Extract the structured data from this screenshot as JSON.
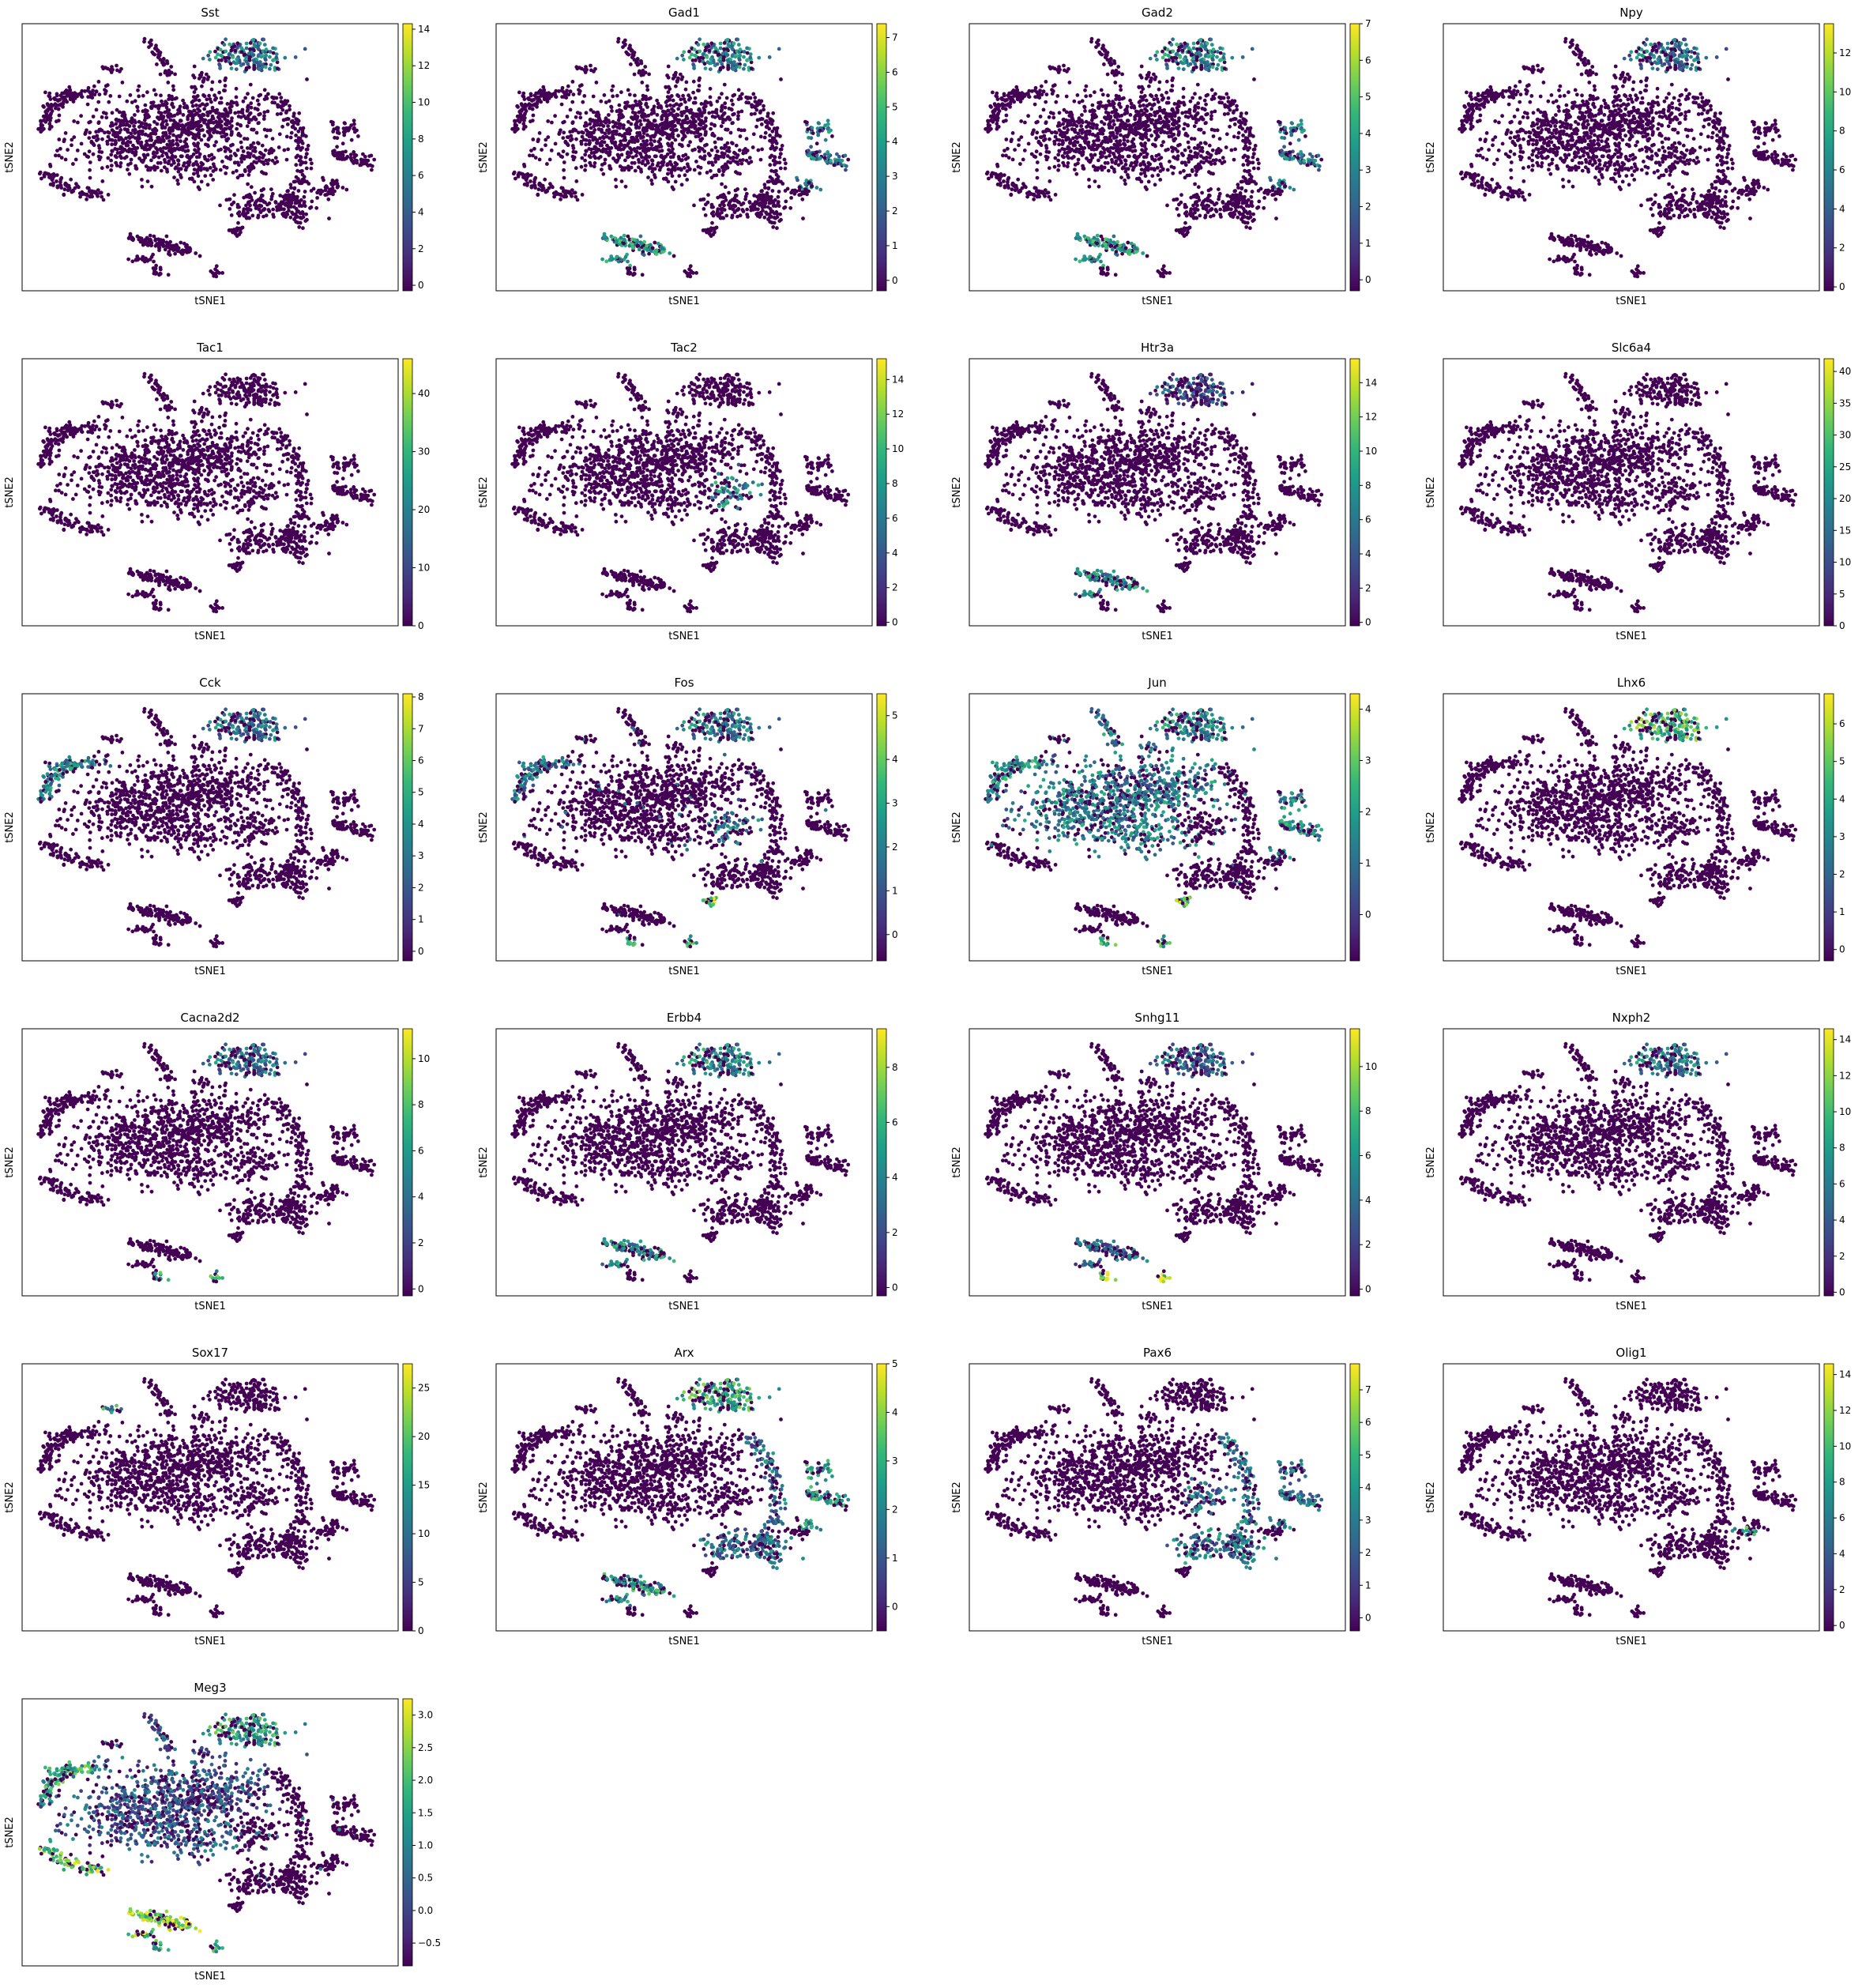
{
  "colormap": "viridis",
  "viridis_stops": [
    "#440154",
    "#482878",
    "#3e4989",
    "#31688e",
    "#26828e",
    "#1f9e89",
    "#35b779",
    "#6ece58",
    "#b5de2b",
    "#fde725"
  ],
  "point_color_base": "#440154",
  "chart_data": [
    {
      "type": "scatter",
      "title": "Sst",
      "xlabel": "tSNE1",
      "ylabel": "tSNE2",
      "clim": [
        -0.3,
        14.3
      ],
      "colorbar_ticks": [
        "0",
        "2",
        "4",
        "6",
        "8",
        "10",
        "12",
        "14"
      ],
      "colorbar_tick_values": [
        0,
        2,
        4,
        6,
        8,
        10,
        12,
        14
      ],
      "high_expression_regions": [
        {
          "region": "top-cluster",
          "level": 0.45
        }
      ]
    },
    {
      "type": "scatter",
      "title": "Gad1",
      "xlabel": "tSNE1",
      "ylabel": "tSNE2",
      "clim": [
        -0.3,
        7.4
      ],
      "colorbar_ticks": [
        "0",
        "1",
        "2",
        "3",
        "4",
        "5",
        "6",
        "7"
      ],
      "colorbar_tick_values": [
        0,
        1,
        2,
        3,
        4,
        5,
        6,
        7
      ],
      "high_expression_regions": [
        {
          "region": "top-cluster",
          "level": 0.5
        },
        {
          "region": "bottom-strip",
          "level": 0.55
        },
        {
          "region": "right-edge",
          "level": 0.45
        }
      ]
    },
    {
      "type": "scatter",
      "title": "Gad2",
      "xlabel": "tSNE1",
      "ylabel": "tSNE2",
      "clim": [
        -0.3,
        7.0
      ],
      "colorbar_ticks": [
        "0",
        "1",
        "2",
        "3",
        "4",
        "5",
        "6",
        "7"
      ],
      "colorbar_tick_values": [
        0,
        1,
        2,
        3,
        4,
        5,
        6,
        7
      ],
      "high_expression_regions": [
        {
          "region": "top-cluster",
          "level": 0.5
        },
        {
          "region": "bottom-strip",
          "level": 0.55
        },
        {
          "region": "right-edge",
          "level": 0.45
        }
      ]
    },
    {
      "type": "scatter",
      "title": "Npy",
      "xlabel": "tSNE1",
      "ylabel": "tSNE2",
      "clim": [
        -0.2,
        13.5
      ],
      "colorbar_ticks": [
        "0",
        "2",
        "4",
        "6",
        "8",
        "10",
        "12"
      ],
      "colorbar_tick_values": [
        0,
        2,
        4,
        6,
        8,
        10,
        12
      ],
      "high_expression_regions": [
        {
          "region": "top-cluster",
          "level": 0.4
        }
      ]
    },
    {
      "type": "scatter",
      "title": "Tac1",
      "xlabel": "tSNE1",
      "ylabel": "tSNE2",
      "clim": [
        0,
        46
      ],
      "colorbar_ticks": [
        "0",
        "10",
        "20",
        "30",
        "40"
      ],
      "colorbar_tick_values": [
        0,
        10,
        20,
        30,
        40
      ],
      "high_expression_regions": []
    },
    {
      "type": "scatter",
      "title": "Tac2",
      "xlabel": "tSNE1",
      "ylabel": "tSNE2",
      "clim": [
        -0.2,
        15.2
      ],
      "colorbar_ticks": [
        "0",
        "2",
        "4",
        "6",
        "8",
        "10",
        "12",
        "14"
      ],
      "colorbar_tick_values": [
        0,
        2,
        4,
        6,
        8,
        10,
        12,
        14
      ],
      "high_expression_regions": [
        {
          "region": "center-right",
          "level": 0.5
        }
      ]
    },
    {
      "type": "scatter",
      "title": "Htr3a",
      "xlabel": "tSNE1",
      "ylabel": "tSNE2",
      "clim": [
        -0.2,
        15.4
      ],
      "colorbar_ticks": [
        "0",
        "2",
        "4",
        "6",
        "8",
        "10",
        "12",
        "14"
      ],
      "colorbar_tick_values": [
        0,
        2,
        4,
        6,
        8,
        10,
        12,
        14
      ],
      "high_expression_regions": [
        {
          "region": "bottom-strip",
          "level": 0.5
        },
        {
          "region": "top-cluster",
          "level": 0.25
        }
      ]
    },
    {
      "type": "scatter",
      "title": "Slc6a4",
      "xlabel": "tSNE1",
      "ylabel": "tSNE2",
      "clim": [
        0,
        42
      ],
      "colorbar_ticks": [
        "0",
        "5",
        "10",
        "15",
        "20",
        "25",
        "30",
        "35",
        "40"
      ],
      "colorbar_tick_values": [
        0,
        5,
        10,
        15,
        20,
        25,
        30,
        35,
        40
      ],
      "high_expression_regions": []
    },
    {
      "type": "scatter",
      "title": "Cck",
      "xlabel": "tSNE1",
      "ylabel": "tSNE2",
      "clim": [
        -0.3,
        8.1
      ],
      "colorbar_ticks": [
        "0",
        "1",
        "2",
        "3",
        "4",
        "5",
        "6",
        "7",
        "8"
      ],
      "colorbar_tick_values": [
        0,
        1,
        2,
        3,
        4,
        5,
        6,
        7,
        8
      ],
      "high_expression_regions": [
        {
          "region": "top-cluster",
          "level": 0.4
        },
        {
          "region": "left-arc",
          "level": 0.5
        }
      ]
    },
    {
      "type": "scatter",
      "title": "Fos",
      "xlabel": "tSNE1",
      "ylabel": "tSNE2",
      "clim": [
        -0.6,
        5.5
      ],
      "colorbar_ticks": [
        "0",
        "1",
        "2",
        "3",
        "4",
        "5"
      ],
      "colorbar_tick_values": [
        0,
        1,
        2,
        3,
        4,
        5
      ],
      "high_expression_regions": [
        {
          "region": "top-cluster",
          "level": 0.45
        },
        {
          "region": "left-arc",
          "level": 0.45
        },
        {
          "region": "center-right",
          "level": 0.45
        },
        {
          "region": "bottom-right-spot",
          "level": 0.85
        },
        {
          "region": "small-islands",
          "level": 0.55
        }
      ]
    },
    {
      "type": "scatter",
      "title": "Jun",
      "xlabel": "tSNE1",
      "ylabel": "tSNE2",
      "clim": [
        -0.9,
        4.3
      ],
      "colorbar_ticks": [
        "0",
        "1",
        "2",
        "3",
        "4"
      ],
      "colorbar_tick_values": [
        0,
        1,
        2,
        3,
        4
      ],
      "high_expression_regions": [
        {
          "region": "main-body",
          "level": 0.45
        },
        {
          "region": "left-arc",
          "level": 0.55
        },
        {
          "region": "top-cluster",
          "level": 0.5
        },
        {
          "region": "right-edge",
          "level": 0.5
        },
        {
          "region": "bottom-right-spot",
          "level": 0.75
        },
        {
          "region": "small-islands",
          "level": 0.7
        }
      ]
    },
    {
      "type": "scatter",
      "title": "Lhx6",
      "xlabel": "tSNE1",
      "ylabel": "tSNE2",
      "clim": [
        -0.3,
        6.8
      ],
      "colorbar_ticks": [
        "0",
        "1",
        "2",
        "3",
        "4",
        "5",
        "6"
      ],
      "colorbar_tick_values": [
        0,
        1,
        2,
        3,
        4,
        5,
        6
      ],
      "high_expression_regions": [
        {
          "region": "top-cluster",
          "level": 0.7
        }
      ]
    },
    {
      "type": "scatter",
      "title": "Cacna2d2",
      "xlabel": "tSNE1",
      "ylabel": "tSNE2",
      "clim": [
        -0.3,
        11.3
      ],
      "colorbar_ticks": [
        "0",
        "2",
        "4",
        "6",
        "8",
        "10"
      ],
      "colorbar_tick_values": [
        0,
        2,
        4,
        6,
        8,
        10
      ],
      "high_expression_regions": [
        {
          "region": "top-cluster",
          "level": 0.4
        },
        {
          "region": "small-islands",
          "level": 0.6
        }
      ]
    },
    {
      "type": "scatter",
      "title": "Erbb4",
      "xlabel": "tSNE1",
      "ylabel": "tSNE2",
      "clim": [
        -0.3,
        9.4
      ],
      "colorbar_ticks": [
        "0",
        "2",
        "4",
        "6",
        "8"
      ],
      "colorbar_tick_values": [
        0,
        2,
        4,
        6,
        8
      ],
      "high_expression_regions": [
        {
          "region": "top-cluster",
          "level": 0.5
        },
        {
          "region": "bottom-strip",
          "level": 0.5
        }
      ]
    },
    {
      "type": "scatter",
      "title": "Snhg11",
      "xlabel": "tSNE1",
      "ylabel": "tSNE2",
      "clim": [
        -0.3,
        11.7
      ],
      "colorbar_ticks": [
        "0",
        "2",
        "4",
        "6",
        "8",
        "10"
      ],
      "colorbar_tick_values": [
        0,
        2,
        4,
        6,
        8,
        10
      ],
      "high_expression_regions": [
        {
          "region": "top-cluster",
          "level": 0.35
        },
        {
          "region": "bottom-strip",
          "level": 0.35
        },
        {
          "region": "small-islands",
          "level": 0.85
        }
      ]
    },
    {
      "type": "scatter",
      "title": "Nxph2",
      "xlabel": "tSNE1",
      "ylabel": "tSNE2",
      "clim": [
        -0.2,
        14.6
      ],
      "colorbar_ticks": [
        "0",
        "2",
        "4",
        "6",
        "8",
        "10",
        "12",
        "14"
      ],
      "colorbar_tick_values": [
        0,
        2,
        4,
        6,
        8,
        10,
        12,
        14
      ],
      "high_expression_regions": [
        {
          "region": "top-cluster",
          "level": 0.45
        }
      ]
    },
    {
      "type": "scatter",
      "title": "Sox17",
      "xlabel": "tSNE1",
      "ylabel": "tSNE2",
      "clim": [
        0,
        27.5
      ],
      "colorbar_ticks": [
        "0",
        "5",
        "10",
        "15",
        "20",
        "25"
      ],
      "colorbar_tick_values": [
        0,
        5,
        10,
        15,
        20,
        25
      ],
      "high_expression_regions": [
        {
          "region": "left-top-islet",
          "level": 0.55
        }
      ]
    },
    {
      "type": "scatter",
      "title": "Arx",
      "xlabel": "tSNE1",
      "ylabel": "tSNE2",
      "clim": [
        -0.5,
        5.0
      ],
      "colorbar_ticks": [
        "0",
        "1",
        "2",
        "3",
        "4",
        "5"
      ],
      "colorbar_tick_values": [
        0,
        1,
        2,
        3,
        4,
        5
      ],
      "high_expression_regions": [
        {
          "region": "top-cluster",
          "level": 0.65
        },
        {
          "region": "bottom-strip",
          "level": 0.55
        },
        {
          "region": "right-arc",
          "level": 0.4
        },
        {
          "region": "right-edge",
          "level": 0.55
        }
      ]
    },
    {
      "type": "scatter",
      "title": "Pax6",
      "xlabel": "tSNE1",
      "ylabel": "tSNE2",
      "clim": [
        -0.4,
        7.8
      ],
      "colorbar_ticks": [
        "0",
        "1",
        "2",
        "3",
        "4",
        "5",
        "6",
        "7"
      ],
      "colorbar_tick_values": [
        0,
        1,
        2,
        3,
        4,
        5,
        6,
        7
      ],
      "high_expression_regions": [
        {
          "region": "right-arc",
          "level": 0.45
        },
        {
          "region": "center-right",
          "level": 0.4
        },
        {
          "region": "right-edge",
          "level": 0.4
        }
      ]
    },
    {
      "type": "scatter",
      "title": "Olig1",
      "xlabel": "tSNE1",
      "ylabel": "tSNE2",
      "clim": [
        -0.3,
        14.6
      ],
      "colorbar_ticks": [
        "0",
        "2",
        "4",
        "6",
        "8",
        "10",
        "12",
        "14"
      ],
      "colorbar_tick_values": [
        0,
        2,
        4,
        6,
        8,
        10,
        12,
        14
      ],
      "high_expression_regions": [
        {
          "region": "right-islet",
          "level": 0.6
        }
      ]
    },
    {
      "type": "scatter",
      "title": "Meg3",
      "xlabel": "tSNE1",
      "ylabel": "tSNE2",
      "clim": [
        -0.85,
        3.25
      ],
      "colorbar_ticks": [
        "−0.5",
        "0.0",
        "0.5",
        "1.0",
        "1.5",
        "2.0",
        "2.5",
        "3.0"
      ],
      "colorbar_tick_values": [
        -0.5,
        0,
        0.5,
        1.0,
        1.5,
        2.0,
        2.5,
        3.0
      ],
      "high_expression_regions": [
        {
          "region": "left-arc",
          "level": 0.65
        },
        {
          "region": "left-lower",
          "level": 0.8
        },
        {
          "region": "top-cluster",
          "level": 0.6
        },
        {
          "region": "bottom-strip",
          "level": 0.85
        },
        {
          "region": "small-islands",
          "level": 0.6
        },
        {
          "region": "main-body",
          "level": 0.3
        }
      ]
    }
  ]
}
